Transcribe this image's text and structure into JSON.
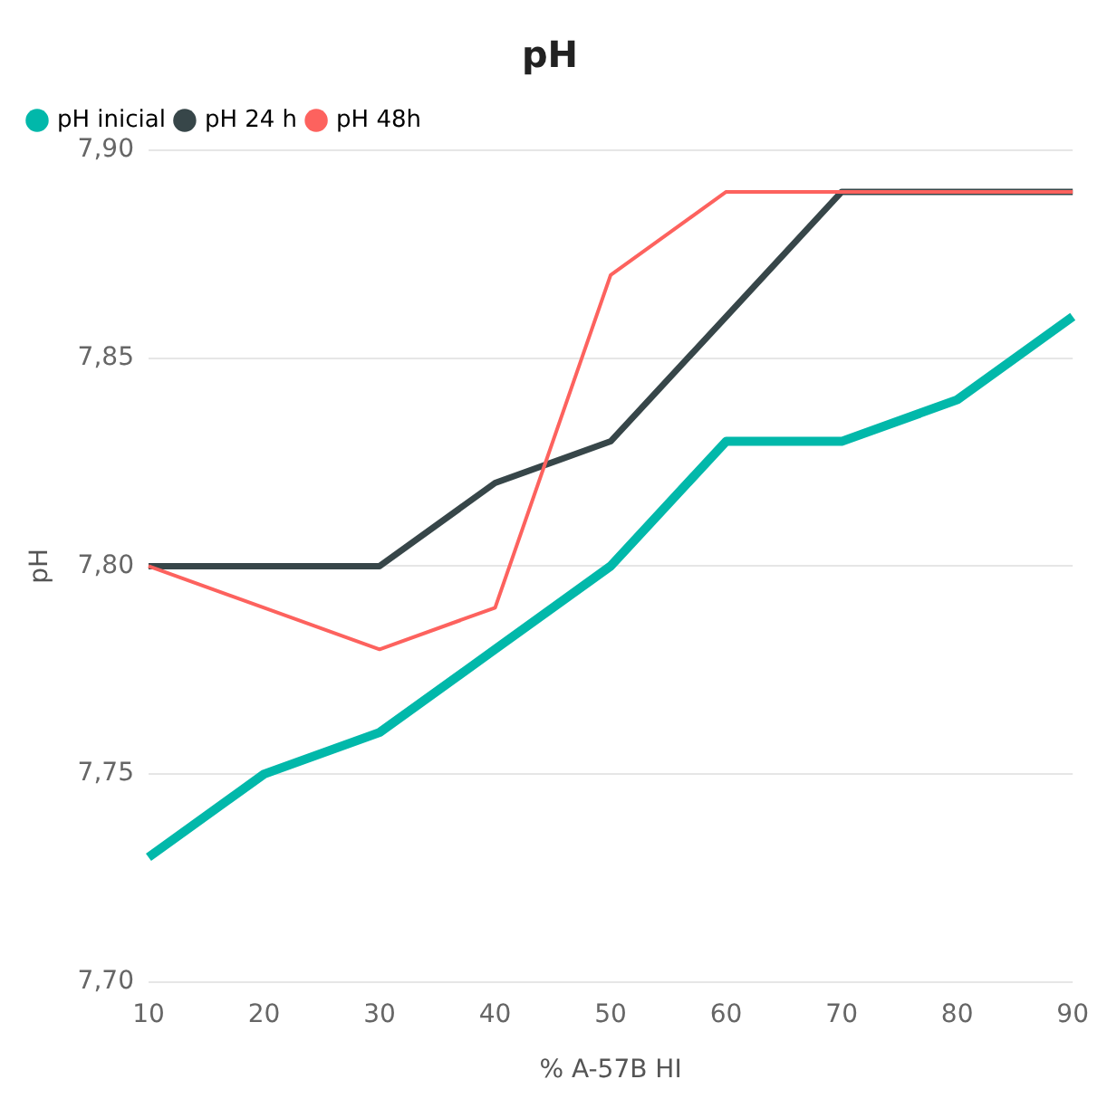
{
  "chart_data": {
    "type": "line",
    "title": "pH",
    "xlabel": "% A-57B HI",
    "ylabel": "pH",
    "categories": [
      "10",
      "20",
      "30",
      "40",
      "50",
      "60",
      "70",
      "80",
      "90"
    ],
    "series": [
      {
        "name": "pH inicial",
        "color": "#01b8aa",
        "values": [
          7.73,
          7.75,
          7.76,
          7.78,
          7.8,
          7.83,
          7.83,
          7.84,
          7.86
        ]
      },
      {
        "name": "pH 24 h",
        "color": "#374649",
        "values": [
          7.8,
          7.8,
          7.8,
          7.82,
          7.83,
          7.86,
          7.89,
          7.89,
          7.89
        ]
      },
      {
        "name": "pH 48h",
        "color": "#fd625e",
        "values": [
          7.8,
          7.79,
          7.78,
          7.79,
          7.87,
          7.89,
          7.89,
          7.89,
          7.89
        ]
      }
    ],
    "ylim": [
      7.7,
      7.9
    ],
    "yticks": [
      {
        "value": 7.7,
        "label": "7,70"
      },
      {
        "value": 7.75,
        "label": "7,75"
      },
      {
        "value": 7.8,
        "label": "7,80"
      },
      {
        "value": 7.85,
        "label": "7,85"
      },
      {
        "value": 7.9,
        "label": "7,90"
      }
    ],
    "grid": "y",
    "legend": "top left",
    "marker": "none",
    "line_style": "solid"
  }
}
